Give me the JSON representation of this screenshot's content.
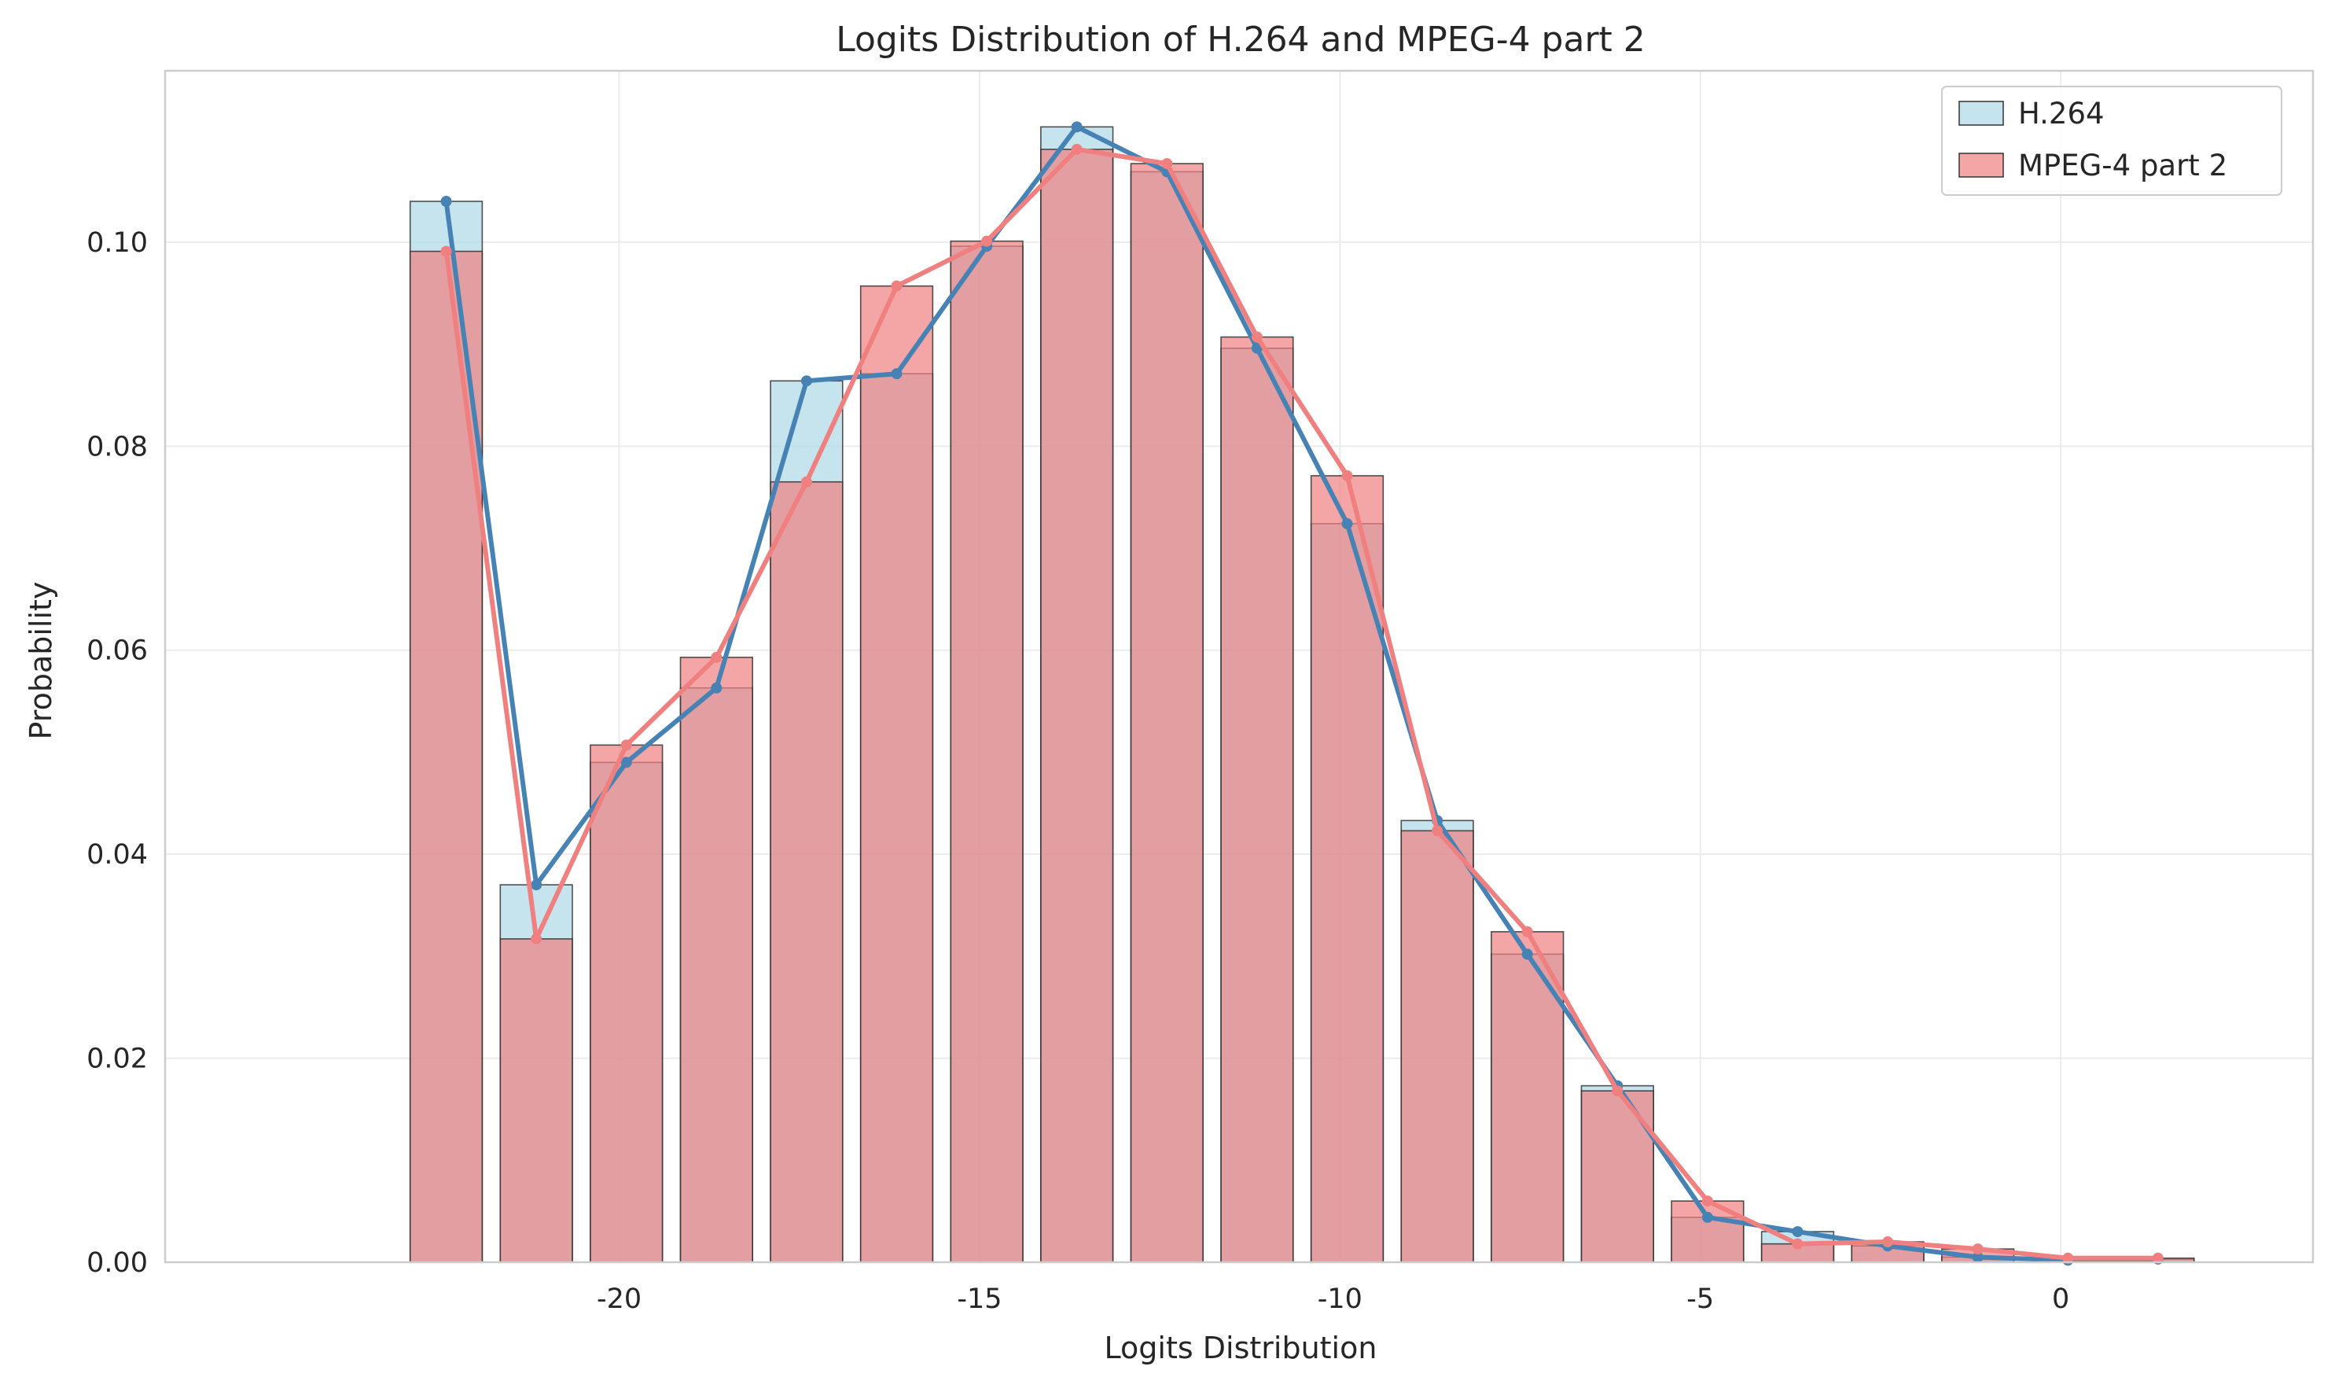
{
  "chart_data": {
    "type": "bar",
    "title": "Logits Distribution of H.264 and MPEG-4 part 2",
    "xlabel": "Logits Distribution",
    "ylabel": "Probability",
    "xlim": [
      -26.3,
      3.5
    ],
    "ylim": [
      0,
      0.1168
    ],
    "bin_width": 1.25,
    "bar_width": 1.0,
    "bin_centers": [
      -22.4,
      -21.15,
      -19.9,
      -18.65,
      -17.4,
      -16.15,
      -14.9,
      -13.65,
      -12.4,
      -11.15,
      -9.9,
      -8.65,
      -7.4,
      -6.15,
      -4.9,
      -3.65,
      -2.4,
      -1.15,
      0.1,
      1.35
    ],
    "xticks": [
      -20,
      -15,
      -10,
      -5,
      0
    ],
    "xtick_labels": [
      "-20",
      "-15",
      "-10",
      "-5",
      "0"
    ],
    "yticks": [
      0.0,
      0.02,
      0.04,
      0.06,
      0.08,
      0.1
    ],
    "ytick_labels": [
      "0.00",
      "0.02",
      "0.04",
      "0.06",
      "0.08",
      "0.10"
    ],
    "grid": true,
    "legend_position": "top-right",
    "series": [
      {
        "name": "H.264",
        "bar_color": "#add8e6",
        "line_color": "#4682b4",
        "values": [
          0.104,
          0.037,
          0.049,
          0.0563,
          0.0864,
          0.0871,
          0.0996,
          0.1113,
          0.1069,
          0.0896,
          0.0724,
          0.0433,
          0.0302,
          0.0173,
          0.0044,
          0.003,
          0.0016,
          0.0005,
          0.0002,
          0.0003
        ]
      },
      {
        "name": "MPEG-4 part 2",
        "bar_color": "#f08080",
        "line_color": "#f08080",
        "values": [
          0.0991,
          0.0317,
          0.0507,
          0.0593,
          0.0765,
          0.0957,
          0.1001,
          0.1091,
          0.1077,
          0.0907,
          0.0771,
          0.0423,
          0.0324,
          0.0168,
          0.006,
          0.0018,
          0.002,
          0.0013,
          0.0004,
          0.0004
        ]
      }
    ]
  }
}
